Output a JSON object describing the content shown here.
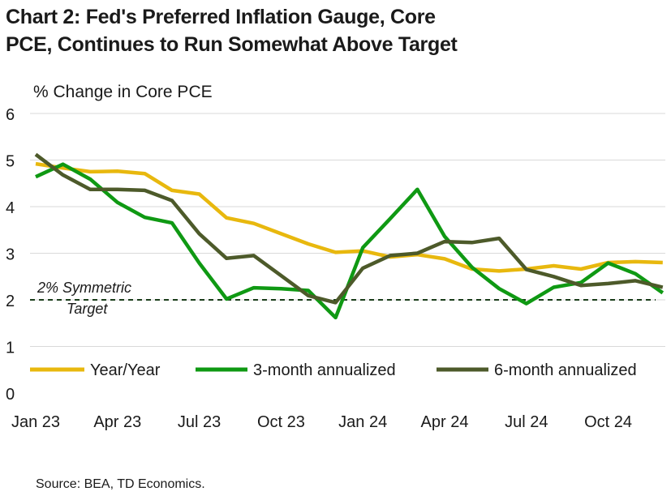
{
  "title_line1": "Chart 2: Fed's Preferred Inflation Gauge, Core",
  "title_line2": "PCE, Continues to Run Somewhat Above Target",
  "source": "Source: BEA, TD Economics.",
  "chart_data": {
    "type": "line",
    "title": "Chart 2: Fed's Preferred Inflation Gauge, Core PCE, Continues to Run Somewhat Above Target",
    "ylabel": "% Change in Core PCE",
    "xlabel": "",
    "ylim": [
      0,
      6
    ],
    "yticks": [
      0,
      1,
      2,
      3,
      4,
      5,
      6
    ],
    "x": [
      "Jan 23",
      "Feb 23",
      "Mar 23",
      "Apr 23",
      "May 23",
      "Jun 23",
      "Jul 23",
      "Aug 23",
      "Sep 23",
      "Oct 23",
      "Nov 23",
      "Dec 23",
      "Jan 24",
      "Feb 24",
      "Mar 24",
      "Apr 24",
      "May 24",
      "Jun 24",
      "Jul 24",
      "Aug 24",
      "Sep 24",
      "Oct 24",
      "Nov 24",
      "Dec 24"
    ],
    "x_tick_labels": [
      {
        "index": 0,
        "label": "Jan 23"
      },
      {
        "index": 3,
        "label": "Apr 23"
      },
      {
        "index": 6,
        "label": "Jul 23"
      },
      {
        "index": 9,
        "label": "Oct 23"
      },
      {
        "index": 12,
        "label": "Jan 24"
      },
      {
        "index": 15,
        "label": "Apr 24"
      },
      {
        "index": 18,
        "label": "Jul 24"
      },
      {
        "index": 21,
        "label": "Oct 24"
      }
    ],
    "grid": true,
    "legend_position": "bottom",
    "series": [
      {
        "name": "Year/Year",
        "color": "#e8b80e",
        "values": [
          4.92,
          4.83,
          4.75,
          4.76,
          4.71,
          4.35,
          4.27,
          3.76,
          3.64,
          3.42,
          3.2,
          3.02,
          3.05,
          2.92,
          2.97,
          2.88,
          2.66,
          2.62,
          2.66,
          2.73,
          2.66,
          2.8,
          2.82,
          2.8
        ]
      },
      {
        "name": "3-month annualized",
        "color": "#0f9913",
        "values": [
          4.64,
          4.91,
          4.59,
          4.09,
          3.77,
          3.65,
          2.79,
          2.02,
          2.26,
          2.24,
          2.2,
          1.62,
          3.12,
          3.74,
          4.37,
          3.36,
          2.7,
          2.24,
          1.92,
          2.27,
          2.37,
          2.79,
          2.56,
          2.15
        ]
      },
      {
        "name": "6-month annualized",
        "color": "#4d5a2a",
        "values": [
          5.12,
          4.68,
          4.37,
          4.37,
          4.35,
          4.13,
          3.42,
          2.89,
          2.95,
          2.52,
          2.09,
          1.94,
          2.68,
          2.95,
          3.0,
          3.25,
          3.23,
          3.32,
          2.65,
          2.5,
          2.31,
          2.35,
          2.41,
          2.27
        ]
      }
    ],
    "reference_line": {
      "value": 2,
      "label_line1": "2% Symmetric",
      "label_line2": "Target",
      "color": "#1a3d1a"
    }
  }
}
